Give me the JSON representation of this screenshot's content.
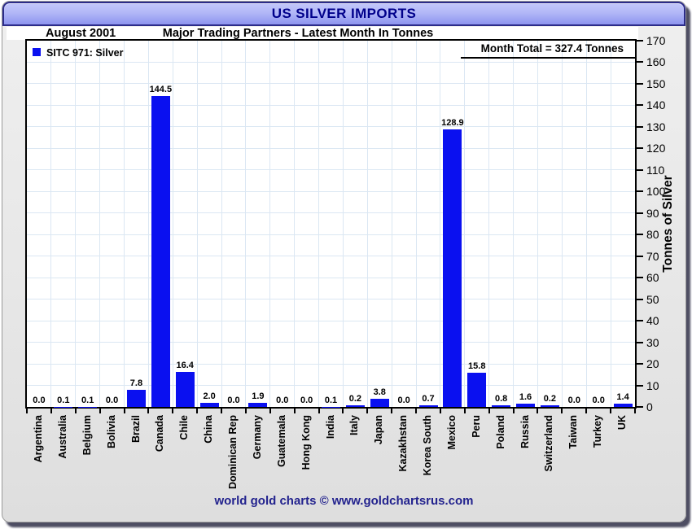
{
  "header": {
    "title": "US SILVER IMPORTS",
    "period": "August 2001",
    "subtitle": "Major Trading Partners - Latest Month In Tonnes"
  },
  "legend": {
    "label": "SITC 971: Silver"
  },
  "annotations": {
    "month_total_label": "Month Total = 327.4 Tonnes"
  },
  "footer": {
    "credit": "world gold charts © www.goldchartsrus.com"
  },
  "colors": {
    "bar": "#0a10f0",
    "grid": "#dbe7f3",
    "title_text": "#00008b",
    "footer_text": "#23238e",
    "titlebar_border": "#2c2c8a"
  },
  "chart_data": {
    "type": "bar",
    "title": "US SILVER IMPORTS",
    "subtitle": "Major Trading Partners - Latest Month In Tonnes",
    "period": "August 2001",
    "categories": [
      "Argentina",
      "Australia",
      "Belgium",
      "Bolivia",
      "Brazil",
      "Canada",
      "Chile",
      "China",
      "Dominican Rep",
      "Germany",
      "Guatemala",
      "Hong Kong",
      "India",
      "Italy",
      "Japan",
      "Kazakhstan",
      "Korea South",
      "Mexico",
      "Peru",
      "Poland",
      "Russia",
      "Switzerland",
      "Taiwan",
      "Turkey",
      "UK"
    ],
    "values": [
      0.0,
      0.1,
      0.1,
      0.0,
      7.8,
      144.5,
      16.4,
      2.0,
      0.0,
      1.9,
      0.0,
      0.0,
      0.1,
      0.2,
      3.8,
      0.0,
      0.7,
      128.9,
      15.8,
      0.8,
      1.6,
      0.2,
      0.0,
      0.0,
      1.4
    ],
    "xlabel": "",
    "ylabel": "Tonnes of Silver",
    "ylim": [
      0,
      170
    ],
    "ytick_step": 10,
    "yaxis_side": "right",
    "grid": true,
    "legend": [
      "SITC 971: Silver"
    ],
    "legend_position": "top-left",
    "month_total": 327.4,
    "bar_labels": true
  }
}
